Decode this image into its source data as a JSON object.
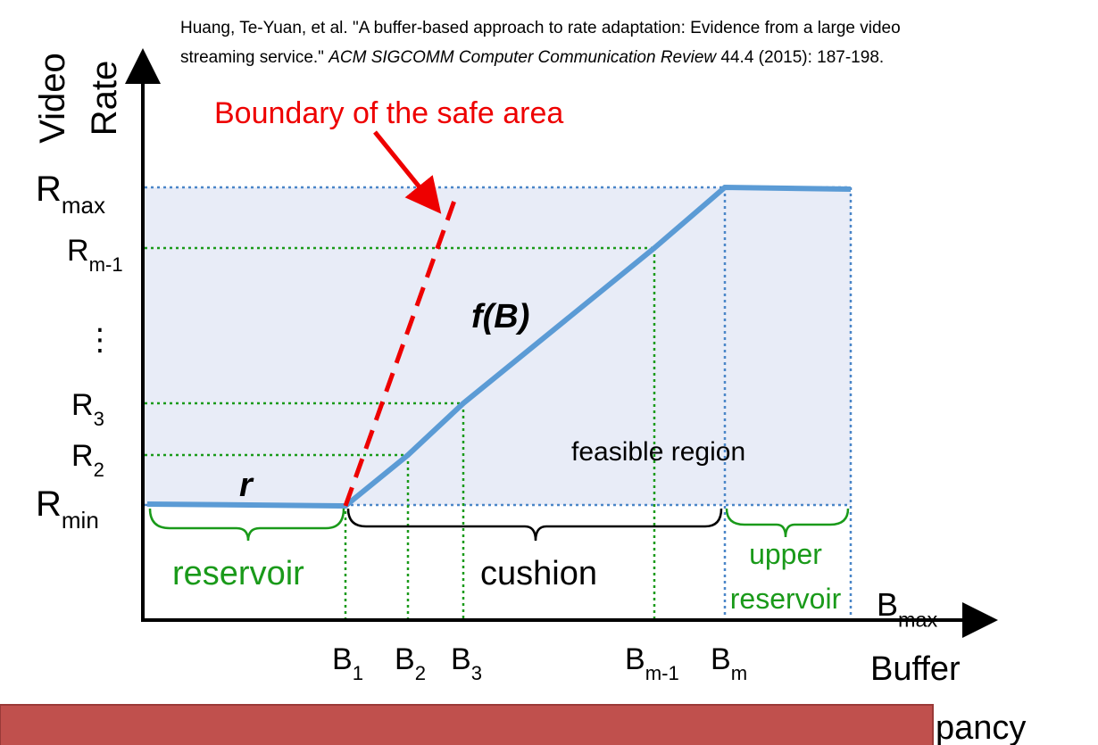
{
  "citation": {
    "before": "Huang, Te-Yuan, et al. \"A buffer-based approach to rate adaptation: Evidence from a large video",
    "line2_before": "streaming service.\" ",
    "journal": "ACM SIGCOMM Computer Communication Review",
    "after": " 44.4 (2015): 187-198."
  },
  "y_axis_label": [
    "Video",
    "Rate"
  ],
  "x_axis_label": "Buffer",
  "boundary_label": "Boundary of the safe area",
  "y_labels": [
    {
      "base": "R",
      "sub": "max"
    },
    {
      "base": "R",
      "sub": "m-1"
    },
    {
      "base": "⋮"
    },
    {
      "base": "R",
      "sub": "3"
    },
    {
      "base": "R",
      "sub": "2"
    },
    {
      "base": "R",
      "sub": "min"
    }
  ],
  "x_labels": [
    {
      "base": "B",
      "sub": "1"
    },
    {
      "base": "B",
      "sub": "2"
    },
    {
      "base": "B",
      "sub": "3"
    },
    {
      "base": "B",
      "sub": "m-1"
    },
    {
      "base": "B",
      "sub": "m"
    }
  ],
  "bmax": {
    "base": "B",
    "sub": "max"
  },
  "r_label": "r",
  "f_label": "f(B)",
  "feasible_label": "feasible region",
  "regions": {
    "reservoir": "reservoir",
    "cushion": "cushion",
    "upper_reservoir": [
      "upper",
      "reservoir"
    ]
  },
  "occupancy_fragment": "pancy"
}
